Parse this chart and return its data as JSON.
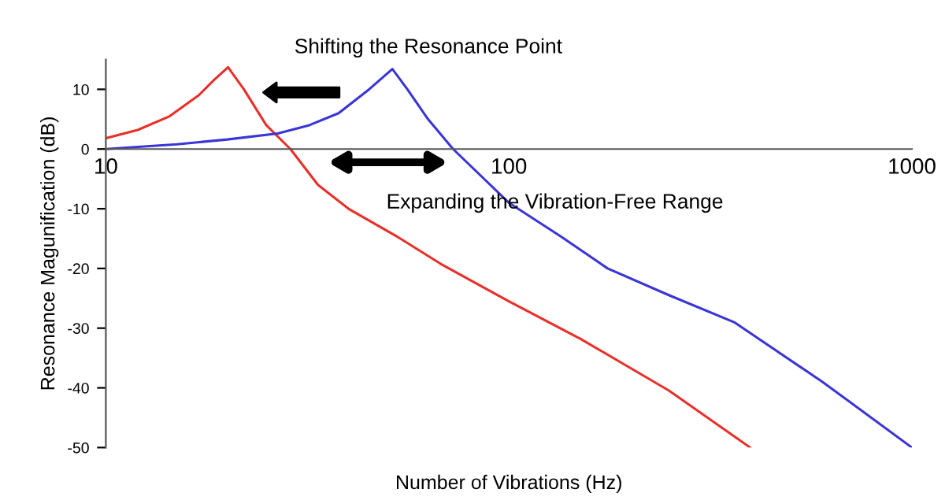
{
  "chart_data": {
    "type": "line",
    "xlabel": "Number of Vibrations (Hz)",
    "ylabel": "Resonance Magunification (dB)",
    "log": "x",
    "xlim": [
      10,
      1000
    ],
    "xticks": [
      10,
      100,
      1000
    ],
    "ylim": [
      -50,
      15
    ],
    "yticks": [
      -50,
      -40,
      -30,
      -20,
      -10,
      0,
      10
    ],
    "grid": false,
    "marker": "none",
    "line_style": "solid",
    "annotations": [
      "Shifting the Resonance Point",
      "Expanding the Vibration-Free Range"
    ],
    "series": [
      {
        "color": "#e8302a",
        "x": [
          10,
          12,
          14.4,
          17,
          18.5,
          20.1,
          22,
          25,
          28.7,
          33.6,
          40,
          52.9,
          67.6,
          100,
          150.6,
          250,
          397
        ],
        "values": [
          1.8,
          3.2,
          5.5,
          9,
          11.5,
          13.7,
          10,
          4,
          0,
          -6,
          -10,
          -14.7,
          -19.2,
          -25.5,
          -31.8,
          -40.5,
          -50
        ]
      },
      {
        "color": "#3a35d6",
        "x": [
          10,
          15,
          20,
          26.7,
          32,
          37.8,
          45,
          51.4,
          56,
          63,
          72.7,
          100,
          135,
          175.8,
          250,
          362,
          600,
          1000
        ],
        "values": [
          0,
          0.8,
          1.6,
          2.6,
          4,
          6,
          10,
          13.4,
          10,
          5,
          0,
          -9,
          -14.7,
          -20,
          -24.5,
          -29,
          -39,
          -50
        ]
      }
    ]
  }
}
